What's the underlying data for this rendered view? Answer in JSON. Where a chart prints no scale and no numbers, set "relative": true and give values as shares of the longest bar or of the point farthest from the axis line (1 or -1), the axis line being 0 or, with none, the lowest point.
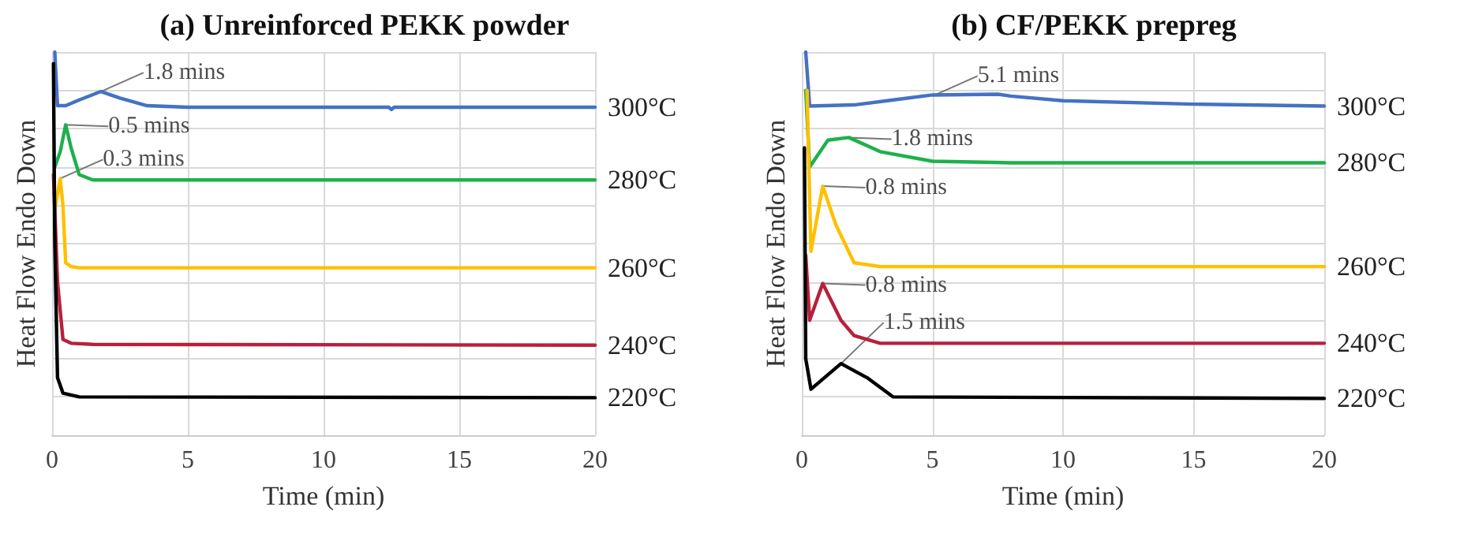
{
  "chart_data": [
    {
      "type": "line",
      "title": "(a) Unreinforced PEKK powder",
      "xlabel": "Time (min)",
      "ylabel": "Heat Flow Endo Down",
      "relative": true,
      "xlim": [
        0,
        20
      ],
      "xticks": [
        0,
        5,
        10,
        15,
        20
      ],
      "grid": true,
      "legend": false,
      "marker": "none",
      "line_style": "solid",
      "series": [
        {
          "name": "300°C",
          "color": "#4472c4",
          "x": [
            0.1,
            0.2,
            0.5,
            1,
            1.8,
            2.5,
            3.5,
            5,
            12.4,
            12.5,
            12.6,
            20
          ],
          "values": [
            1.0,
            0.86,
            0.86,
            0.875,
            0.897,
            0.88,
            0.86,
            0.856,
            0.856,
            0.85,
            0.856,
            0.856
          ]
        },
        {
          "name": "280°C",
          "color": "#1fb04c",
          "x": [
            0.1,
            0.3,
            0.5,
            0.7,
            1,
            1.5,
            20
          ],
          "values": [
            0.7,
            0.74,
            0.81,
            0.75,
            0.68,
            0.666,
            0.666
          ]
        },
        {
          "name": "260°C",
          "color": "#ffc000",
          "x": [
            0.1,
            0.3,
            0.4,
            0.5,
            0.7,
            1,
            20
          ],
          "values": [
            0.59,
            0.67,
            0.6,
            0.45,
            0.44,
            0.437,
            0.437
          ]
        },
        {
          "name": "240°C",
          "color": "#b8203c",
          "x": [
            0.05,
            0.2,
            0.4,
            0.7,
            1.5,
            20
          ],
          "values": [
            0.68,
            0.4,
            0.25,
            0.24,
            0.237,
            0.235
          ]
        },
        {
          "name": "220°C",
          "color": "#000000",
          "x": [
            0.05,
            0.1,
            0.2,
            0.4,
            1,
            20
          ],
          "values": [
            0.97,
            0.5,
            0.15,
            0.11,
            0.1,
            0.098
          ]
        }
      ],
      "annotations": [
        {
          "text": "1.8 mins",
          "x": 1.8,
          "y": 0.897
        },
        {
          "text": "0.5 mins",
          "x": 0.5,
          "y": 0.81
        },
        {
          "text": "0.3 mins",
          "x": 0.3,
          "y": 0.67
        }
      ]
    },
    {
      "type": "line",
      "title": "(b) CF/PEKK prepreg",
      "xlabel": "Time (min)",
      "ylabel": "Heat Flow Endo Down",
      "relative": true,
      "xlim": [
        0,
        20
      ],
      "xticks": [
        0,
        5,
        10,
        15,
        20
      ],
      "grid": true,
      "legend": false,
      "marker": "none",
      "line_style": "solid",
      "series": [
        {
          "name": "300°C",
          "color": "#4472c4",
          "x": [
            0.15,
            0.3,
            2,
            3.5,
            5,
            7.5,
            8,
            10,
            15,
            20
          ],
          "values": [
            1.0,
            0.859,
            0.862,
            0.875,
            0.888,
            0.89,
            0.885,
            0.873,
            0.864,
            0.859
          ]
        },
        {
          "name": "280°C",
          "color": "#1fb04c",
          "x": [
            0.15,
            0.3,
            1,
            1.8,
            3,
            5,
            8,
            20
          ],
          "values": [
            0.9,
            0.7,
            0.77,
            0.777,
            0.74,
            0.715,
            0.711,
            0.711
          ]
        },
        {
          "name": "260°C",
          "color": "#ffc000",
          "x": [
            0.2,
            0.35,
            0.8,
            1.3,
            2,
            3,
            20
          ],
          "values": [
            0.9,
            0.48,
            0.65,
            0.55,
            0.45,
            0.44,
            0.44
          ]
        },
        {
          "name": "240°C",
          "color": "#b8203c",
          "x": [
            0.15,
            0.3,
            0.8,
            1.5,
            2,
            3,
            20
          ],
          "values": [
            0.47,
            0.3,
            0.396,
            0.3,
            0.26,
            0.24,
            0.24
          ]
        },
        {
          "name": "220°C",
          "color": "#000000",
          "x": [
            0.1,
            0.15,
            0.35,
            1.5,
            2.5,
            3.5,
            20
          ],
          "values": [
            0.75,
            0.2,
            0.12,
            0.187,
            0.15,
            0.1,
            0.096
          ]
        }
      ],
      "annotations": [
        {
          "text": "5.1 mins",
          "x": 5.1,
          "y": 0.888
        },
        {
          "text": "1.8 mins",
          "x": 1.8,
          "y": 0.777
        },
        {
          "text": "0.8 mins",
          "x": 0.8,
          "y": 0.65
        },
        {
          "text": "0.8 mins",
          "x": 0.8,
          "y": 0.396
        },
        {
          "text": "1.5 mins",
          "x": 1.5,
          "y": 0.187
        }
      ]
    }
  ]
}
